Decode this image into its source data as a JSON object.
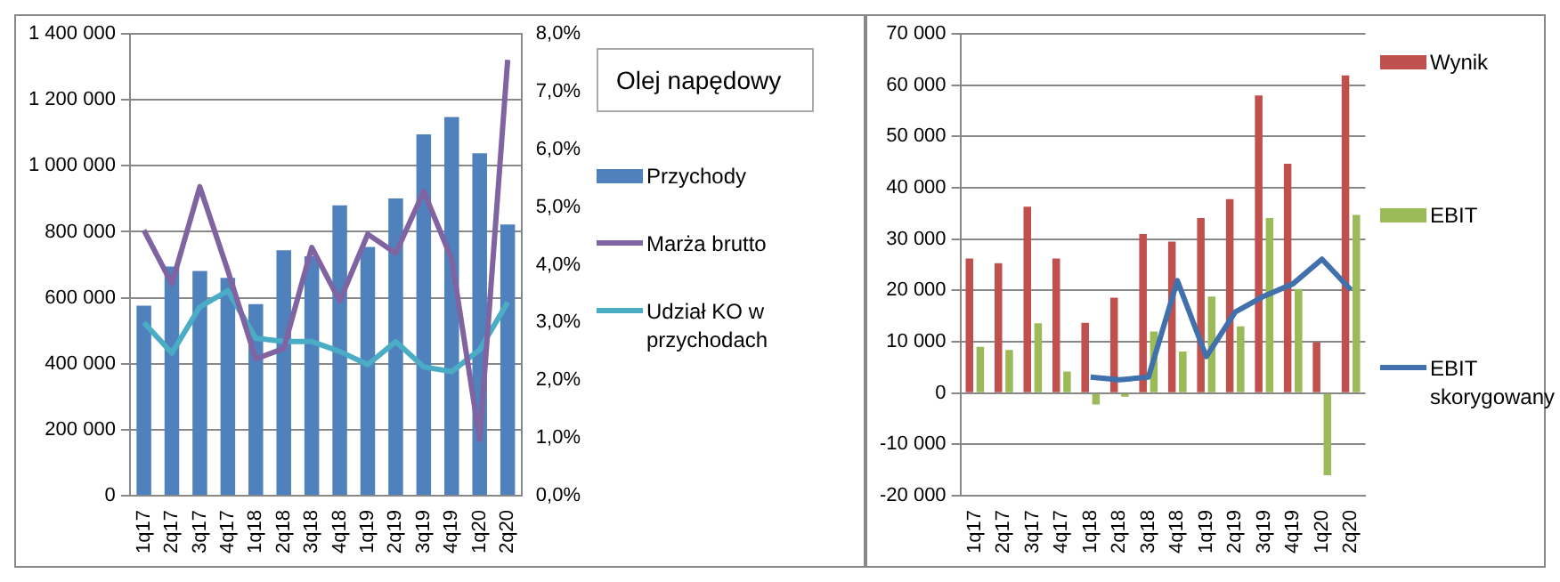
{
  "chart_data": [
    {
      "type": "bar",
      "legend_title": "Olej napędowy",
      "categories": [
        "1q17",
        "2q17",
        "3q17",
        "4q17",
        "1q18",
        "2q18",
        "3q18",
        "4q18",
        "1q19",
        "2q19",
        "3q19",
        "4q19",
        "1q20",
        "2q20"
      ],
      "series": [
        {
          "name": "Przychody",
          "color": "#4f81bd",
          "values": [
            576000,
            695000,
            681000,
            660000,
            581000,
            744000,
            726000,
            880000,
            754000,
            901000,
            1095000,
            1148000,
            1038000,
            822000
          ]
        },
        {
          "name": "Marża brutto",
          "type": "line",
          "axis": "y2",
          "color": "#8064a2",
          "values": [
            4.6,
            3.67,
            5.35,
            3.9,
            2.37,
            2.55,
            4.3,
            3.37,
            4.53,
            4.2,
            5.27,
            4.1,
            0.97,
            7.55
          ]
        },
        {
          "name": "Udział KO w przychodach",
          "type": "line",
          "axis": "y2",
          "color": "#4bacc6",
          "values": [
            3.0,
            2.47,
            3.27,
            3.55,
            2.73,
            2.67,
            2.67,
            2.5,
            2.27,
            2.67,
            2.23,
            2.15,
            2.53,
            3.35
          ]
        }
      ],
      "ylim": [
        0,
        1400000
      ],
      "yticks": [
        0,
        {
          "value": 200000,
          "label": "200 000"
        },
        {
          "value": 400000,
          "label": "400 000"
        },
        {
          "value": 600000,
          "label": "600 000"
        },
        {
          "value": 800000,
          "label": "800 000"
        },
        {
          "value": 1000000,
          "label": "1 000 000"
        },
        {
          "value": 1200000,
          "label": "1 200 000"
        },
        {
          "value": 1400000,
          "label": "1 400 000"
        }
      ],
      "y2lim": [
        0,
        8
      ],
      "y2ticks": [
        {
          "value": 0,
          "label": "0,0%"
        },
        {
          "value": 1,
          "label": "1,0%"
        },
        {
          "value": 2,
          "label": "2,0%"
        },
        {
          "value": 3,
          "label": "3,0%"
        },
        {
          "value": 4,
          "label": "4,0%"
        },
        {
          "value": 5,
          "label": "5,0%"
        },
        {
          "value": 6,
          "label": "6,0%"
        },
        {
          "value": 7,
          "label": "7,0%"
        },
        {
          "value": 8,
          "label": "8,0%"
        }
      ],
      "grid": "y",
      "legend": "right",
      "marker": "none"
    },
    {
      "type": "bar",
      "categories": [
        "1q17",
        "2q17",
        "3q17",
        "4q17",
        "1q18",
        "2q18",
        "3q18",
        "4q18",
        "1q19",
        "2q19",
        "3q19",
        "4q19",
        "1q20",
        "2q20"
      ],
      "series": [
        {
          "name": "Wynik",
          "color": "#c0504d",
          "values": [
            26200,
            25300,
            36300,
            26200,
            13700,
            18600,
            31000,
            29500,
            34100,
            37800,
            58000,
            44700,
            9900,
            61900
          ]
        },
        {
          "name": "EBIT",
          "color": "#9bbb59",
          "values": [
            9000,
            8400,
            13600,
            4200,
            -2200,
            -700,
            12000,
            8100,
            18800,
            13000,
            34100,
            20300,
            -16000,
            34700
          ]
        },
        {
          "name": "EBIT skorygowany",
          "type": "line",
          "color": "#4071ad",
          "values": [
            null,
            null,
            null,
            null,
            3100,
            2600,
            3100,
            21900,
            7100,
            15800,
            18900,
            21300,
            26100,
            20100
          ]
        }
      ],
      "ylim": [
        -20000,
        70000
      ],
      "yticks": [
        {
          "value": -20000,
          "label": "-20 000"
        },
        {
          "value": -10000,
          "label": "-10 000"
        },
        0,
        {
          "value": 10000,
          "label": "10 000"
        },
        {
          "value": 20000,
          "label": "20 000"
        },
        {
          "value": 30000,
          "label": "30 000"
        },
        {
          "value": 40000,
          "label": "40 000"
        },
        {
          "value": 50000,
          "label": "50 000"
        },
        {
          "value": 60000,
          "label": "60 000"
        },
        {
          "value": 70000,
          "label": "70 000"
        }
      ],
      "grid": "y",
      "legend": "right",
      "marker": "none"
    }
  ]
}
